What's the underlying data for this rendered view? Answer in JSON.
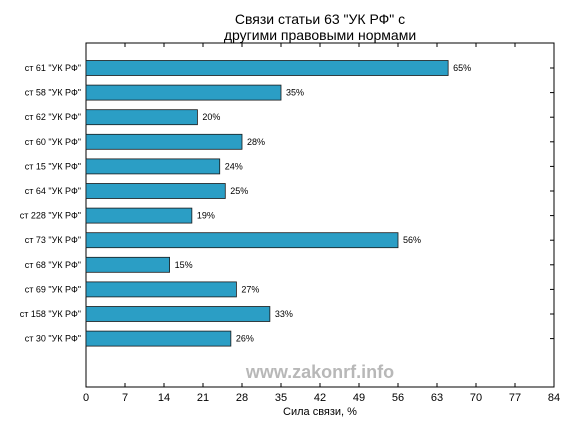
{
  "chart_data": {
    "type": "bar",
    "orientation": "horizontal",
    "title_lines": [
      "Связи статьи 63 \"УК РФ\" с",
      "другими правовыми нормами"
    ],
    "xlabel": "Сила связи, %",
    "ylabel": "",
    "xlim": [
      0,
      84
    ],
    "xticks": [
      0,
      7,
      14,
      21,
      28,
      35,
      42,
      49,
      56,
      63,
      70,
      77,
      84
    ],
    "categories": [
      "ст 61 \"УК РФ\"",
      "ст 58 \"УК РФ\"",
      "ст 62 \"УК РФ\"",
      "ст 60 \"УК РФ\"",
      "ст 15 \"УК РФ\"",
      "ст 64 \"УК РФ\"",
      "ст 228 \"УК РФ\"",
      "ст 73 \"УК РФ\"",
      "ст 68 \"УК РФ\"",
      "ст 69 \"УК РФ\"",
      "ст 158 \"УК РФ\"",
      "ст 30 \"УК РФ\""
    ],
    "values": [
      65,
      35,
      20,
      28,
      24,
      25,
      19,
      56,
      15,
      27,
      33,
      26
    ],
    "value_labels": [
      "65%",
      "35%",
      "20%",
      "28%",
      "24%",
      "25%",
      "19%",
      "56%",
      "15%",
      "27%",
      "33%",
      "26%"
    ],
    "bar_color": "#2b9ec5",
    "bar_edge_color": "#1a1a1a",
    "grid": false,
    "legend": "none",
    "watermark": "www.zakonrf.info"
  }
}
